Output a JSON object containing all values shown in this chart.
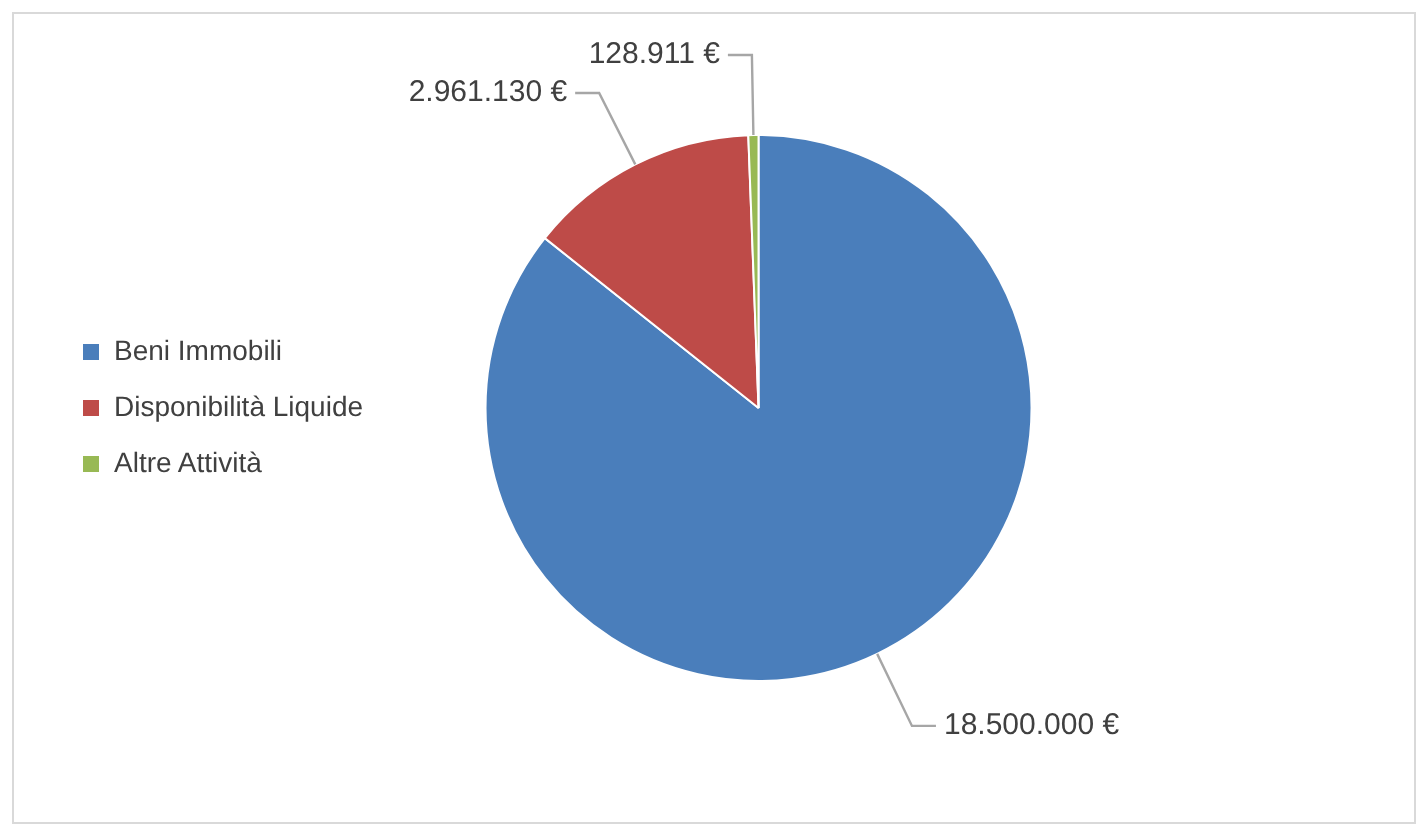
{
  "chart_data": {
    "type": "pie",
    "categories": [
      "Beni Immobili",
      "Disponibilità Liquide",
      "Altre Attività"
    ],
    "values": [
      18500000,
      2961130,
      128911
    ],
    "colors": [
      "#4a7ebb",
      "#be4b48",
      "#98b954"
    ],
    "value_labels": [
      "18.500.000 €",
      "2.961.130 €",
      "128.911 €"
    ],
    "legend": "left"
  }
}
